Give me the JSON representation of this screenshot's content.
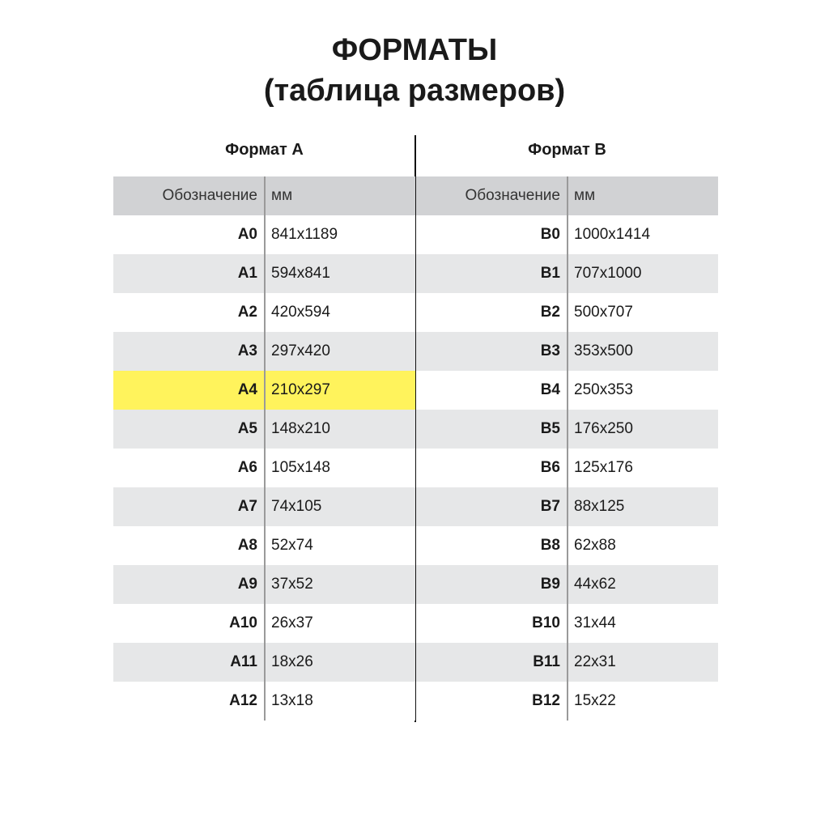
{
  "title": {
    "line1": "ФОРМАТЫ",
    "line2": "(таблица размеров)"
  },
  "colors": {
    "header_row": "#d1d2d4",
    "alt_row": "#e6e7e8",
    "highlight": "#fff35c"
  },
  "tables": [
    {
      "heading": "Формат А",
      "columns": [
        "Обозначение",
        "мм"
      ],
      "highlight": "A4",
      "rows": [
        [
          "A0",
          "841x1189"
        ],
        [
          "A1",
          "594x841"
        ],
        [
          "A2",
          "420x594"
        ],
        [
          "A3",
          "297x420"
        ],
        [
          "A4",
          "210x297"
        ],
        [
          "A5",
          "148x210"
        ],
        [
          "A6",
          "105x148"
        ],
        [
          "A7",
          "74x105"
        ],
        [
          "A8",
          "52x74"
        ],
        [
          "A9",
          "37x52"
        ],
        [
          "A10",
          "26x37"
        ],
        [
          "A11",
          "18x26"
        ],
        [
          "A12",
          "13x18"
        ]
      ]
    },
    {
      "heading": "Формат В",
      "columns": [
        "Обозначение",
        "мм"
      ],
      "highlight": "",
      "rows": [
        [
          "B0",
          "1000x1414"
        ],
        [
          "B1",
          "707x1000"
        ],
        [
          "B2",
          "500x707"
        ],
        [
          "B3",
          "353x500"
        ],
        [
          "B4",
          "250x353"
        ],
        [
          "B5",
          "176x250"
        ],
        [
          "B6",
          "125x176"
        ],
        [
          "B7",
          "88x125"
        ],
        [
          "B8",
          "62x88"
        ],
        [
          "B9",
          "44x62"
        ],
        [
          "B10",
          "31x44"
        ],
        [
          "B11",
          "22x31"
        ],
        [
          "B12",
          "15x22"
        ]
      ]
    }
  ]
}
